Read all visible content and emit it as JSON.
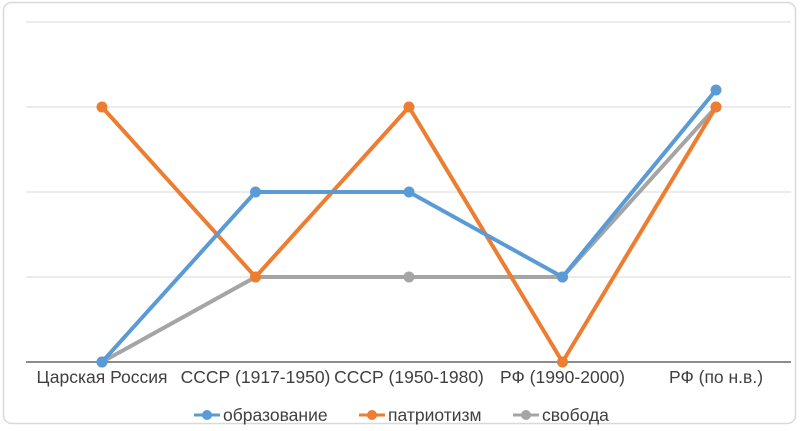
{
  "chart_data": {
    "type": "line",
    "title": "",
    "xlabel": "",
    "ylabel": "",
    "categories": [
      "Царская Россия",
      "СССР (1917-1950)",
      "СССР (1950-1980)",
      "РФ (1990-2000)",
      "РФ (по н.в.)"
    ],
    "series": [
      {
        "name": "образование",
        "color": "#5B9BD5",
        "values": [
          0,
          2,
          2,
          1,
          3.2
        ]
      },
      {
        "name": "патриотизм",
        "color": "#ED7D31",
        "values": [
          3,
          1,
          3,
          0,
          3
        ]
      },
      {
        "name": "свобода",
        "color": "#A5A5A5",
        "values": [
          0,
          1,
          1,
          1,
          3
        ]
      }
    ],
    "ylim": [
      0,
      4
    ],
    "gridline_values": [
      1,
      2,
      3,
      4
    ],
    "grid": true,
    "legend_position": "bottom",
    "marker_shape": "circle"
  },
  "style_colors": {
    "background": "#FFFFFF",
    "card_border": "#D9D9D9",
    "gridline": "#D9D9D9",
    "axis_line": "#8C8C8C",
    "label_text": "#404040"
  }
}
